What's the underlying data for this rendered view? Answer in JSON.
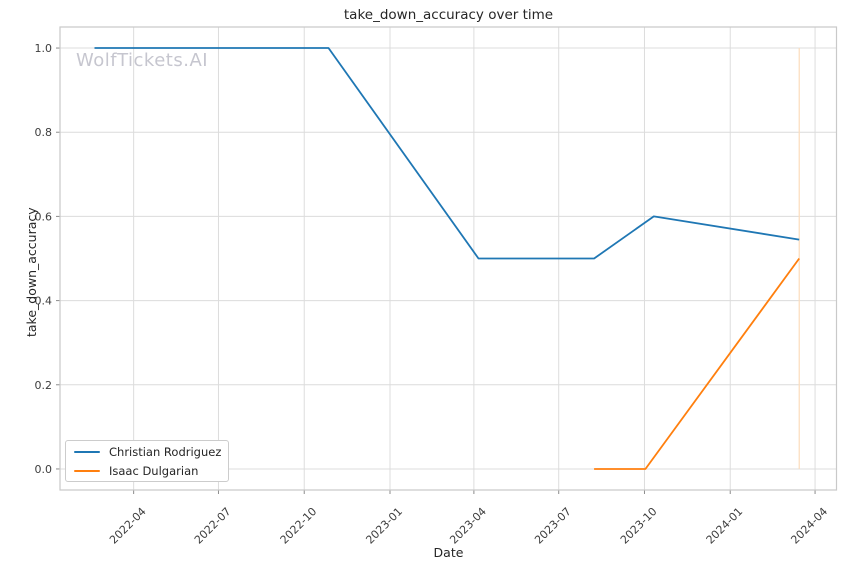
{
  "watermark": "WolfTickets.AI",
  "chart_data": {
    "type": "line",
    "title": "take_down_accuracy over time",
    "xlabel": "Date",
    "ylabel": "take_down_accuracy",
    "legend_position": "lower left",
    "grid": true,
    "xlim": [
      "2022-01-12",
      "2024-04-24"
    ],
    "ylim": [
      -0.05,
      1.05
    ],
    "x_ticks": [
      {
        "label": "2022-04",
        "date": "2022-04-01"
      },
      {
        "label": "2022-07",
        "date": "2022-07-01"
      },
      {
        "label": "2022-10",
        "date": "2022-10-01"
      },
      {
        "label": "2023-01",
        "date": "2023-01-01"
      },
      {
        "label": "2023-04",
        "date": "2023-04-01"
      },
      {
        "label": "2023-07",
        "date": "2023-07-01"
      },
      {
        "label": "2023-10",
        "date": "2023-10-01"
      },
      {
        "label": "2024-01",
        "date": "2024-01-01"
      },
      {
        "label": "2024-04",
        "date": "2024-04-01"
      }
    ],
    "y_ticks": [
      {
        "label": "0.0",
        "value": 0.0
      },
      {
        "label": "0.2",
        "value": 0.2
      },
      {
        "label": "0.4",
        "value": 0.4
      },
      {
        "label": "0.6",
        "value": 0.6
      },
      {
        "label": "0.8",
        "value": 0.8
      },
      {
        "label": "1.0",
        "value": 1.0
      }
    ],
    "series": [
      {
        "name": "Christian Rodriguez",
        "color": "#1f77b4",
        "points": [
          {
            "date": "2022-02-18",
            "value": 1.0
          },
          {
            "date": "2022-10-27",
            "value": 1.0
          },
          {
            "date": "2023-04-06",
            "value": 0.5
          },
          {
            "date": "2023-08-08",
            "value": 0.5
          },
          {
            "date": "2023-10-11",
            "value": 0.6
          },
          {
            "date": "2024-03-15",
            "value": 0.545
          }
        ]
      },
      {
        "name": "Isaac Dulgarian",
        "color": "#ff7f0e",
        "points": [
          {
            "date": "2023-08-08",
            "value": 0.0
          },
          {
            "date": "2023-10-02",
            "value": 0.0
          },
          {
            "date": "2024-03-15",
            "value": 0.5
          }
        ]
      }
    ],
    "annotations": [
      {
        "type": "vline",
        "date": "2024-03-15",
        "y_from": 0.0,
        "y_to": 1.0,
        "color": "#fbdcbc"
      }
    ],
    "style": {
      "grid_color": "#dcdcdc",
      "spine_color": "#c9c9c9",
      "tick_color": "#8c8c8c",
      "tick_label_color": "#3d3d3d",
      "background": "#ffffff"
    }
  }
}
